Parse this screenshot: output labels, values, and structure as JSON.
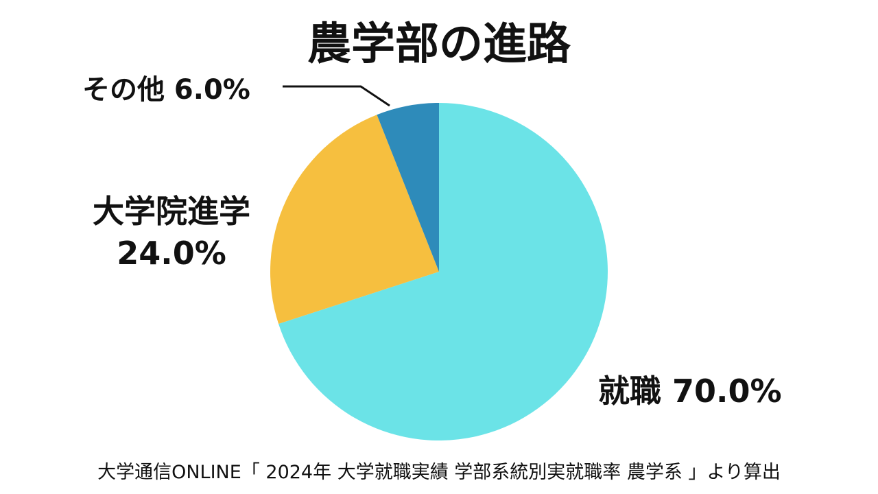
{
  "chart_data": {
    "type": "pie",
    "title": "農学部の進路",
    "slices": [
      {
        "label": "就職",
        "value": 70.0,
        "display": "70.0%",
        "color": "#6BE3E7"
      },
      {
        "label": "大学院進学",
        "value": 24.0,
        "display": "24.0%",
        "color": "#F6BF3F"
      },
      {
        "label": "その他",
        "value": 6.0,
        "display": "6.0%",
        "color": "#2E8BBA"
      }
    ],
    "start_angle": "12 o'clock",
    "direction": "clockwise",
    "legend": "none"
  },
  "labels": {
    "other": "その他 6.0%",
    "grad_name": "大学院進学",
    "grad_value": "24.0%",
    "job": "就職 70.0%"
  },
  "source": "大学通信ONLINE「 2024年 大学就職実績 学部系統別実就職率 農学系 」より算出"
}
